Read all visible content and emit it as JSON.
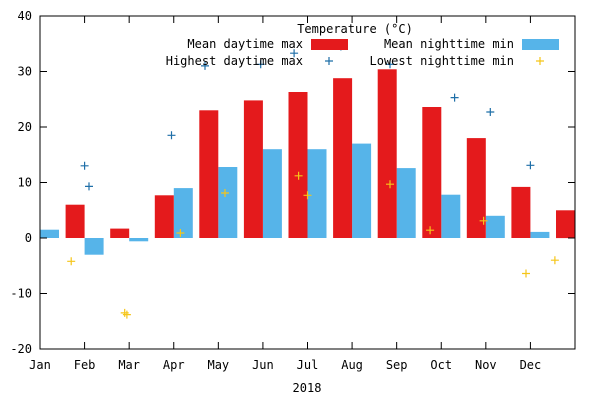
{
  "chart_data": {
    "type": "bar",
    "legend_title": "Temperature (°C)",
    "xlabel": "2018",
    "ylabel": "",
    "ylim": [
      -20,
      40
    ],
    "yticks": [
      -20,
      -10,
      0,
      10,
      20,
      30,
      40
    ],
    "xticks": [
      "Jan",
      "Feb",
      "Mar",
      "Apr",
      "May",
      "Jun",
      "Jul",
      "Aug",
      "Sep",
      "Oct",
      "Nov",
      "Dec"
    ],
    "legend_position": "top-right",
    "colors": {
      "night": "#56b4e9",
      "day": "#e41a1c",
      "max_marker": "#1f6fa8",
      "min_marker": "#f5c518",
      "axis": "#000000"
    },
    "series": [
      {
        "name": "Mean nighttime min",
        "kind": "bar",
        "color": "#56b4e9",
        "values": [
          1.5,
          -3.0,
          -0.6,
          9.0,
          12.8,
          16.0,
          16.0,
          17.0,
          12.6,
          7.8,
          4.0,
          1.1
        ]
      },
      {
        "name": "Mean daytime max",
        "kind": "bar",
        "color": "#e41a1c",
        "values": [
          6.0,
          1.7,
          7.7,
          23.0,
          24.8,
          26.3,
          28.8,
          30.4,
          23.6,
          18.0,
          9.2,
          5.0
        ]
      },
      {
        "name": "Highest daytime max",
        "kind": "marker",
        "color": "#1f6fa8",
        "points": [
          {
            "x": 1.0,
            "y": 13.0
          },
          {
            "x": 1.1,
            "y": 9.3
          },
          {
            "x": 2.95,
            "y": 18.5
          },
          {
            "x": 3.7,
            "y": 31.0
          },
          {
            "x": 4.95,
            "y": 31.3
          },
          {
            "x": 5.7,
            "y": 33.3
          },
          {
            "x": 6.75,
            "y": 34.5
          },
          {
            "x": 7.85,
            "y": 31.3
          },
          {
            "x": 9.3,
            "y": 25.3
          },
          {
            "x": 10.1,
            "y": 22.7
          },
          {
            "x": 11.0,
            "y": 13.1
          }
        ]
      },
      {
        "name": "Lowest nighttime min",
        "kind": "marker",
        "color": "#f5c518",
        "points": [
          {
            "x": 0.7,
            "y": -4.2
          },
          {
            "x": 1.9,
            "y": -13.5
          },
          {
            "x": 1.95,
            "y": -13.8
          },
          {
            "x": 3.15,
            "y": 0.9
          },
          {
            "x": 4.15,
            "y": 8.1
          },
          {
            "x": 5.8,
            "y": 11.2
          },
          {
            "x": 6.0,
            "y": 7.7
          },
          {
            "x": 7.85,
            "y": 9.7
          },
          {
            "x": 8.75,
            "y": 1.4
          },
          {
            "x": 9.95,
            "y": 3.1
          },
          {
            "x": 10.9,
            "y": -6.4
          },
          {
            "x": 11.55,
            "y": -4.0
          }
        ]
      }
    ]
  }
}
